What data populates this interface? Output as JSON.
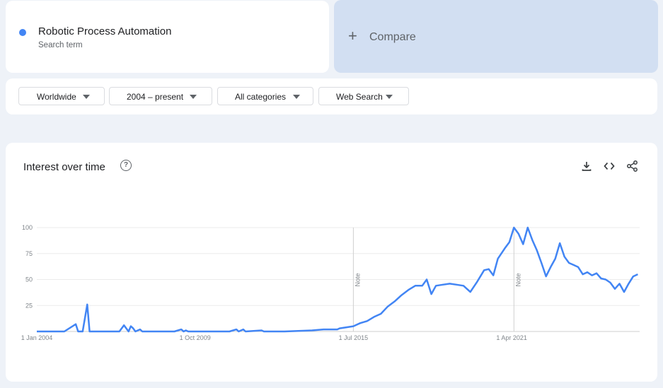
{
  "term": {
    "name": "Robotic Process Automation",
    "subtitle": "Search term",
    "color": "#4285f4"
  },
  "compare": {
    "label": "Compare",
    "icon": "plus-icon"
  },
  "filters": [
    {
      "label": "Worldwide"
    },
    {
      "label": "2004 – present"
    },
    {
      "label": "All categories"
    },
    {
      "label": "Web Search"
    }
  ],
  "card": {
    "title": "Interest over time",
    "icons": [
      "help-icon",
      "download-icon",
      "embed-code-icon",
      "share-icon"
    ]
  },
  "chart_data": {
    "type": "line",
    "x_ticks": [
      "1 Jan 2004",
      "1 Oct 2009",
      "1 Jul 2015",
      "1 Apr 2021"
    ],
    "y_ticks": [
      "100",
      "75",
      "50",
      "25"
    ],
    "ylim": [
      0,
      100
    ],
    "grid": true,
    "notes": [
      {
        "label": "Note",
        "at": "2015-07"
      },
      {
        "label": "Note",
        "at": "2021-05"
      }
    ],
    "series": [
      {
        "color": "#4285f4",
        "points": [
          [
            "2004-01",
            0
          ],
          [
            "2005-01",
            0
          ],
          [
            "2005-06",
            7
          ],
          [
            "2005-07",
            0
          ],
          [
            "2005-09",
            0
          ],
          [
            "2005-11",
            26
          ],
          [
            "2005-12",
            0
          ],
          [
            "2006-01",
            0
          ],
          [
            "2007-01",
            0
          ],
          [
            "2007-03",
            6
          ],
          [
            "2007-05",
            0
          ],
          [
            "2007-06",
            5
          ],
          [
            "2007-07",
            3
          ],
          [
            "2007-08",
            0
          ],
          [
            "2007-10",
            2
          ],
          [
            "2007-11",
            0
          ],
          [
            "2008-01",
            0
          ],
          [
            "2009-01",
            0
          ],
          [
            "2009-04",
            2
          ],
          [
            "2009-05",
            0
          ],
          [
            "2009-06",
            1
          ],
          [
            "2009-07",
            0
          ],
          [
            "2010-01",
            0
          ],
          [
            "2011-01",
            0
          ],
          [
            "2011-04",
            2
          ],
          [
            "2011-05",
            0
          ],
          [
            "2011-07",
            2
          ],
          [
            "2011-08",
            0
          ],
          [
            "2012-03",
            1
          ],
          [
            "2012-04",
            0
          ],
          [
            "2013-01",
            0
          ],
          [
            "2014-01",
            1
          ],
          [
            "2014-06",
            2
          ],
          [
            "2014-12",
            2
          ],
          [
            "2015-01",
            3
          ],
          [
            "2015-04",
            4
          ],
          [
            "2015-07",
            5
          ],
          [
            "2015-10",
            8
          ],
          [
            "2016-01",
            10
          ],
          [
            "2016-04",
            14
          ],
          [
            "2016-07",
            17
          ],
          [
            "2016-10",
            24
          ],
          [
            "2017-01",
            29
          ],
          [
            "2017-04",
            35
          ],
          [
            "2017-07",
            40
          ],
          [
            "2017-10",
            44
          ],
          [
            "2018-01",
            44
          ],
          [
            "2018-03",
            50
          ],
          [
            "2018-05",
            36
          ],
          [
            "2018-07",
            44
          ],
          [
            "2018-10",
            45
          ],
          [
            "2019-01",
            46
          ],
          [
            "2019-04",
            45
          ],
          [
            "2019-07",
            44
          ],
          [
            "2019-10",
            38
          ],
          [
            "2020-01",
            48
          ],
          [
            "2020-04",
            59
          ],
          [
            "2020-06",
            60
          ],
          [
            "2020-08",
            54
          ],
          [
            "2020-10",
            70
          ],
          [
            "2021-01",
            80
          ],
          [
            "2021-03",
            86
          ],
          [
            "2021-05",
            100
          ],
          [
            "2021-07",
            94
          ],
          [
            "2021-09",
            84
          ],
          [
            "2021-11",
            100
          ],
          [
            "2022-01",
            88
          ],
          [
            "2022-03",
            78
          ],
          [
            "2022-05",
            66
          ],
          [
            "2022-07",
            53
          ],
          [
            "2022-09",
            62
          ],
          [
            "2022-11",
            70
          ],
          [
            "2023-01",
            85
          ],
          [
            "2023-03",
            72
          ],
          [
            "2023-05",
            66
          ],
          [
            "2023-07",
            64
          ],
          [
            "2023-09",
            62
          ],
          [
            "2023-11",
            55
          ],
          [
            "2024-01",
            57
          ],
          [
            "2024-03",
            54
          ],
          [
            "2024-05",
            56
          ],
          [
            "2024-07",
            51
          ],
          [
            "2024-09",
            50
          ],
          [
            "2024-11",
            47
          ],
          [
            "2025-01",
            41
          ],
          [
            "2025-03",
            46
          ],
          [
            "2025-05",
            38
          ],
          [
            "2025-07",
            46
          ],
          [
            "2025-09",
            53
          ],
          [
            "2025-11",
            55
          ]
        ]
      }
    ]
  }
}
